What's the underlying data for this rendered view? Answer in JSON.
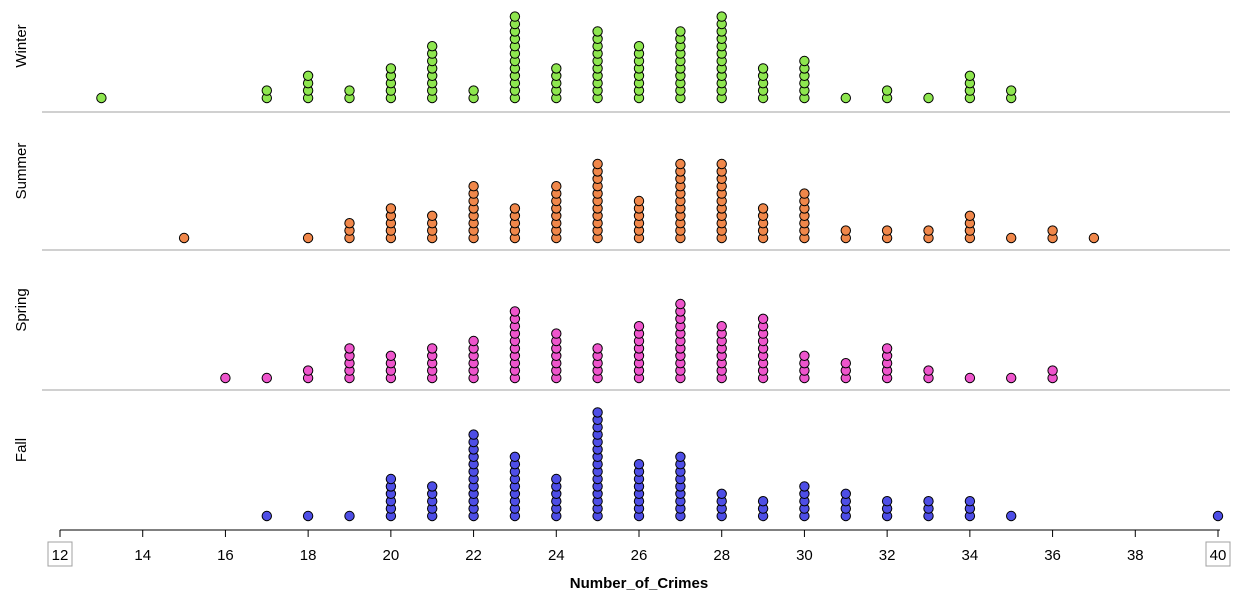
{
  "chart_data": {
    "type": "scatter",
    "subtype": "stacked dot plot",
    "title": "",
    "xlabel": "Number_of_Crimes",
    "ylabel": "",
    "xlim": [
      12,
      40
    ],
    "x_ticks": [
      12,
      14,
      16,
      18,
      20,
      22,
      24,
      26,
      28,
      30,
      32,
      34,
      36,
      38,
      40
    ],
    "grid": false,
    "legend": "none",
    "panels": [
      {
        "name": "Winter",
        "color": "#8ee64f",
        "points": [
          {
            "x": 13,
            "count": 1
          },
          {
            "x": 17,
            "count": 2
          },
          {
            "x": 18,
            "count": 4
          },
          {
            "x": 19,
            "count": 2
          },
          {
            "x": 20,
            "count": 5
          },
          {
            "x": 21,
            "count": 8
          },
          {
            "x": 22,
            "count": 2
          },
          {
            "x": 23,
            "count": 12
          },
          {
            "x": 24,
            "count": 5
          },
          {
            "x": 25,
            "count": 10
          },
          {
            "x": 26,
            "count": 8
          },
          {
            "x": 27,
            "count": 10
          },
          {
            "x": 28,
            "count": 12
          },
          {
            "x": 29,
            "count": 5
          },
          {
            "x": 30,
            "count": 6
          },
          {
            "x": 31,
            "count": 1
          },
          {
            "x": 32,
            "count": 2
          },
          {
            "x": 33,
            "count": 1
          },
          {
            "x": 34,
            "count": 4
          },
          {
            "x": 35,
            "count": 2
          }
        ]
      },
      {
        "name": "Summer",
        "color": "#f0874a",
        "points": [
          {
            "x": 15,
            "count": 1
          },
          {
            "x": 18,
            "count": 1
          },
          {
            "x": 19,
            "count": 3
          },
          {
            "x": 20,
            "count": 5
          },
          {
            "x": 21,
            "count": 4
          },
          {
            "x": 22,
            "count": 8
          },
          {
            "x": 23,
            "count": 5
          },
          {
            "x": 24,
            "count": 8
          },
          {
            "x": 25,
            "count": 11
          },
          {
            "x": 26,
            "count": 6
          },
          {
            "x": 27,
            "count": 11
          },
          {
            "x": 28,
            "count": 11
          },
          {
            "x": 29,
            "count": 5
          },
          {
            "x": 30,
            "count": 7
          },
          {
            "x": 31,
            "count": 2
          },
          {
            "x": 32,
            "count": 2
          },
          {
            "x": 33,
            "count": 2
          },
          {
            "x": 34,
            "count": 4
          },
          {
            "x": 35,
            "count": 1
          },
          {
            "x": 36,
            "count": 2
          },
          {
            "x": 37,
            "count": 1
          }
        ]
      },
      {
        "name": "Spring",
        "color": "#ee55cc",
        "points": [
          {
            "x": 16,
            "count": 1
          },
          {
            "x": 17,
            "count": 1
          },
          {
            "x": 18,
            "count": 2
          },
          {
            "x": 19,
            "count": 5
          },
          {
            "x": 20,
            "count": 4
          },
          {
            "x": 21,
            "count": 5
          },
          {
            "x": 22,
            "count": 6
          },
          {
            "x": 23,
            "count": 10
          },
          {
            "x": 24,
            "count": 7
          },
          {
            "x": 25,
            "count": 5
          },
          {
            "x": 26,
            "count": 8
          },
          {
            "x": 27,
            "count": 11
          },
          {
            "x": 28,
            "count": 8
          },
          {
            "x": 29,
            "count": 9
          },
          {
            "x": 30,
            "count": 4
          },
          {
            "x": 31,
            "count": 3
          },
          {
            "x": 32,
            "count": 5
          },
          {
            "x": 33,
            "count": 2
          },
          {
            "x": 34,
            "count": 1
          },
          {
            "x": 35,
            "count": 1
          },
          {
            "x": 36,
            "count": 2
          }
        ]
      },
      {
        "name": "Fall",
        "color": "#4e4ee6",
        "points": [
          {
            "x": 17,
            "count": 1
          },
          {
            "x": 18,
            "count": 1
          },
          {
            "x": 19,
            "count": 1
          },
          {
            "x": 20,
            "count": 6
          },
          {
            "x": 21,
            "count": 5
          },
          {
            "x": 22,
            "count": 12
          },
          {
            "x": 23,
            "count": 9
          },
          {
            "x": 24,
            "count": 6
          },
          {
            "x": 25,
            "count": 15
          },
          {
            "x": 26,
            "count": 8
          },
          {
            "x": 27,
            "count": 9
          },
          {
            "x": 28,
            "count": 4
          },
          {
            "x": 29,
            "count": 3
          },
          {
            "x": 30,
            "count": 5
          },
          {
            "x": 31,
            "count": 4
          },
          {
            "x": 32,
            "count": 3
          },
          {
            "x": 33,
            "count": 3
          },
          {
            "x": 34,
            "count": 3
          },
          {
            "x": 35,
            "count": 1
          },
          {
            "x": 40,
            "count": 1
          }
        ]
      }
    ]
  }
}
